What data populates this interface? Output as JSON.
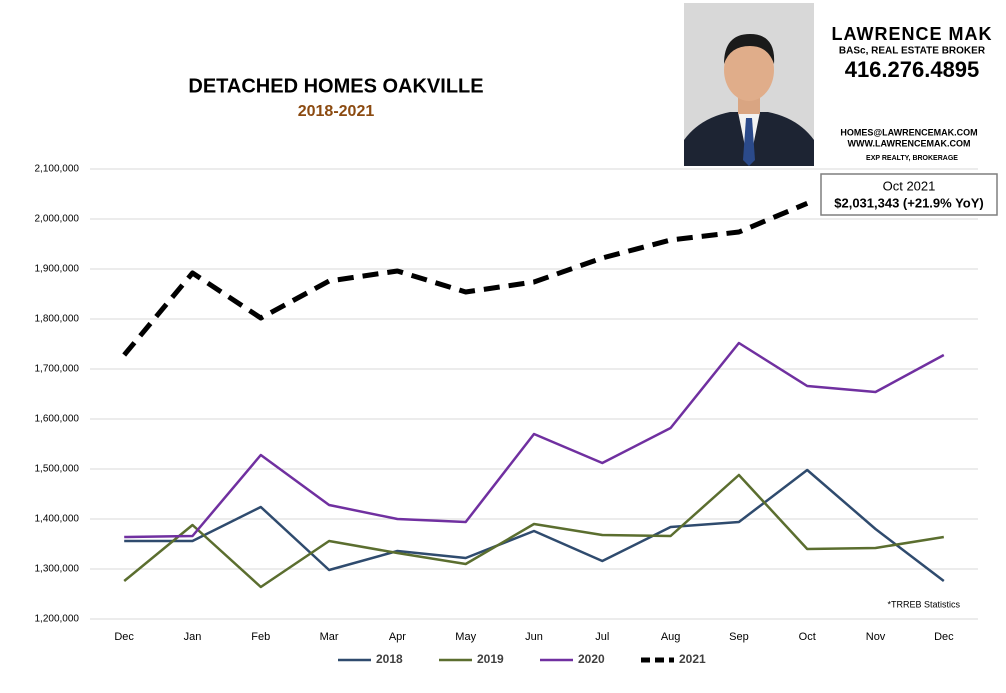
{
  "chart_data": {
    "type": "line",
    "title": "DETACHED HOMES OAKVILLE",
    "subtitle": "2018-2021",
    "footnote": "*TRREB Statistics",
    "annotation": [
      "Oct 2021",
      "$2,031,343 (+21.9%  YoY)"
    ],
    "categories": [
      "Dec",
      "Jan",
      "Feb",
      "Mar",
      "Apr",
      "May",
      "Jun",
      "Jul",
      "Aug",
      "Sep",
      "Oct",
      "Nov",
      "Dec"
    ],
    "series": [
      {
        "name": "2018",
        "color": "#2f4b6e",
        "dashed": false,
        "values": [
          1356000,
          1356000,
          1424000,
          1298000,
          1336000,
          1322000,
          1376000,
          1316000,
          1384000,
          1394000,
          1498000,
          1380000,
          1276000
        ]
      },
      {
        "name": "2019",
        "color": "#5b6e2f",
        "dashed": false,
        "values": [
          1276000,
          1388000,
          1264000,
          1356000,
          1332000,
          1310000,
          1390000,
          1368000,
          1366000,
          1488000,
          1340000,
          1342000,
          1364000
        ]
      },
      {
        "name": "2020",
        "color": "#7030a0",
        "dashed": false,
        "values": [
          1364000,
          1366000,
          1528000,
          1428000,
          1400000,
          1394000,
          1570000,
          1512000,
          1582000,
          1752000,
          1666000,
          1654000,
          1728000
        ]
      },
      {
        "name": "2021",
        "color": "#000000",
        "dashed": true,
        "values": [
          1728000,
          1892000,
          1802000,
          1876000,
          1896000,
          1854000,
          1874000,
          1922000,
          1958000,
          1974000,
          2031343,
          null,
          null
        ]
      }
    ],
    "ylim": [
      1200000,
      2100000
    ],
    "yticks": [
      {
        "value": 1200000,
        "label": "1,200,000"
      },
      {
        "value": 1300000,
        "label": "1,300,000"
      },
      {
        "value": 1400000,
        "label": "1,400,000"
      },
      {
        "value": 1500000,
        "label": "1,500,000"
      },
      {
        "value": 1600000,
        "label": "1,600,000"
      },
      {
        "value": 1700000,
        "label": "1,700,000"
      },
      {
        "value": 1800000,
        "label": "1,800,000"
      },
      {
        "value": 1900000,
        "label": "1,900,000"
      },
      {
        "value": 2000000,
        "label": "2,000,000"
      },
      {
        "value": 2100000,
        "label": "2,100,000"
      }
    ],
    "grid": true,
    "legend": "bottom"
  },
  "branding": {
    "name": "LAWRENCE MAK",
    "credentials": "BASc, REAL ESTATE BROKER",
    "phone": "416.276.4895",
    "email": "HOMES@LAWRENCEMAK.COM",
    "website": "WWW.LAWRENCEMAK.COM",
    "brokerage": "EXP REALTY, BROKERAGE"
  }
}
